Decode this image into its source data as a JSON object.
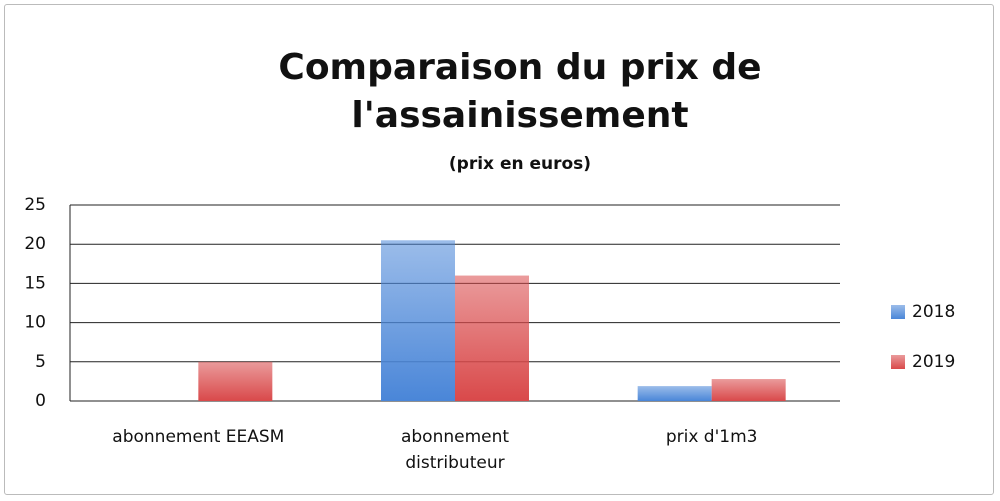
{
  "chart_data": {
    "type": "bar",
    "title": "Comparaison du prix de l'assainissement",
    "subtitle": "(prix en euros)",
    "categories": [
      "abonnement EEASM",
      "abonnement distributeur",
      "prix d'1m3"
    ],
    "series": [
      {
        "name": "2018",
        "color": "#4a86d8",
        "values": [
          0,
          20.5,
          1.9
        ]
      },
      {
        "name": "2019",
        "color": "#d9494a",
        "values": [
          5,
          16,
          2.8
        ]
      }
    ],
    "ylim": [
      0,
      25
    ],
    "yticks": [
      0,
      5,
      10,
      15,
      20,
      25
    ],
    "grid": true,
    "legend": "right"
  }
}
